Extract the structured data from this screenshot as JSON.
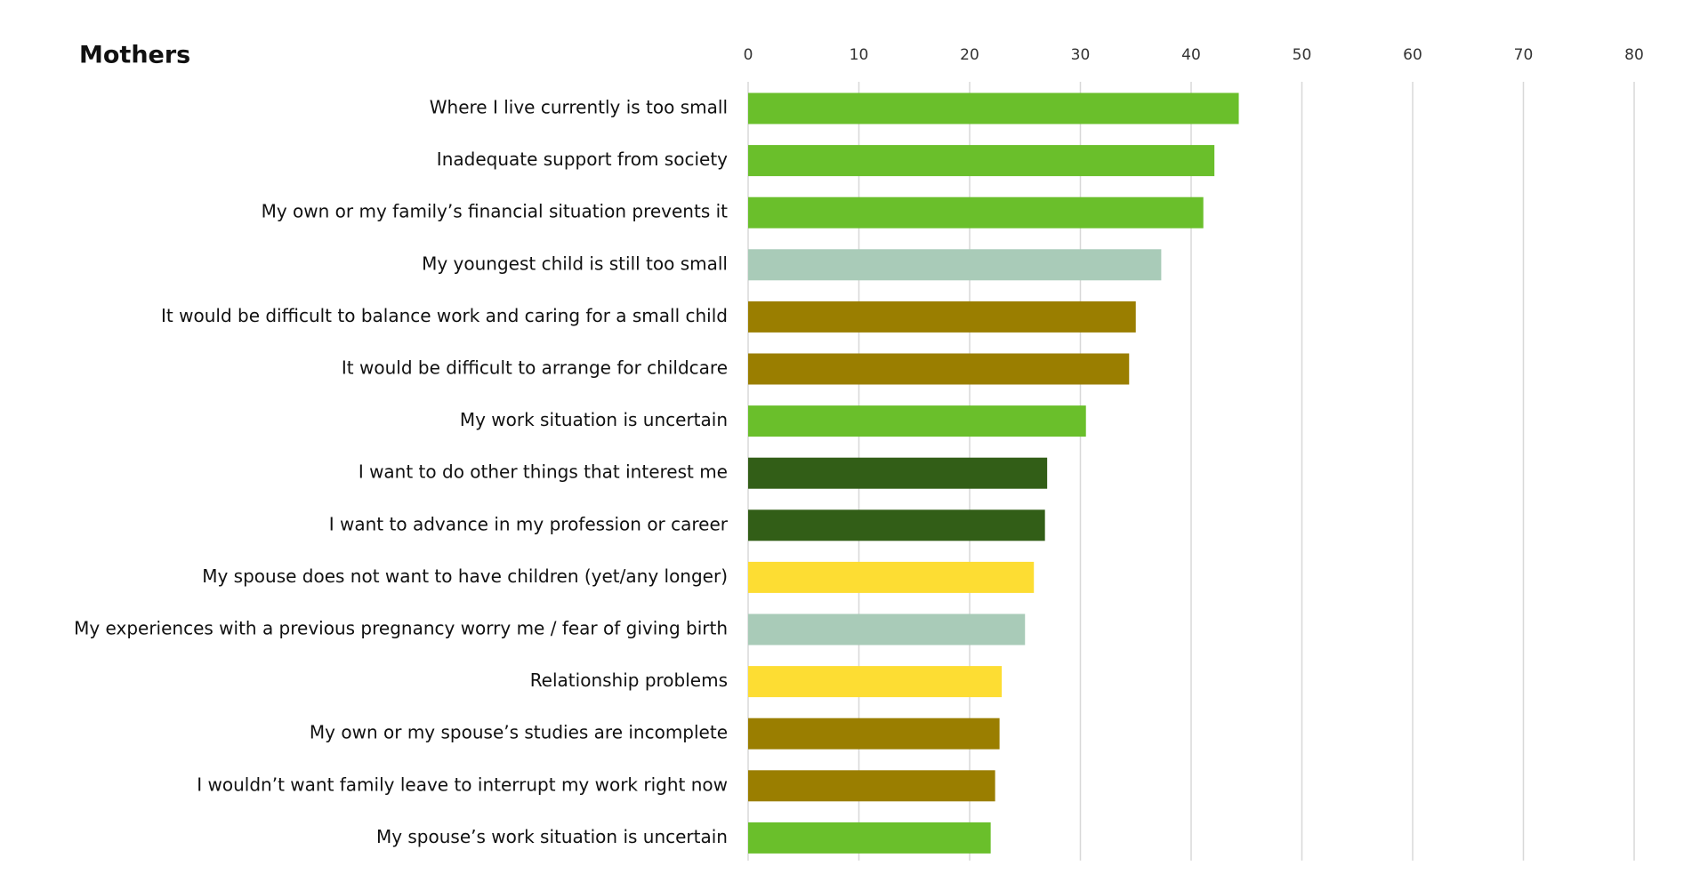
{
  "chart_data": {
    "type": "barh",
    "title": "Mothers",
    "categories": [
      "Where I live currently is too small",
      "Inadequate support from society",
      "My own or my family’s financial situation prevents it",
      "My youngest child is still too small",
      "It would be difficult to balance work and caring for a small child",
      "It would be difficult to arrange for childcare",
      "My work situation is uncertain",
      "I want to do other things that interest me",
      "I want to advance in my profession or career",
      "My spouse does not want to have children (yet/any longer)",
      "My experiences with a previous pregnancy worry me / fear of giving birth",
      "Relationship problems",
      "My own or my spouse’s studies are incomplete",
      "I wouldn’t want family leave to interrupt my work right now",
      "My spouse’s work situation is uncertain"
    ],
    "values": [
      44.3,
      42.1,
      41.1,
      37.3,
      35.0,
      34.4,
      30.5,
      27.0,
      26.8,
      25.8,
      25.0,
      22.9,
      22.7,
      22.3,
      21.9
    ],
    "colors": [
      "#6abf2b",
      "#6abf2b",
      "#6abf2b",
      "#a9cbb8",
      "#9a7e00",
      "#9a7e00",
      "#6abf2b",
      "#325e17",
      "#325e17",
      "#fddd33",
      "#a9cbb8",
      "#fddd33",
      "#9a7e00",
      "#9a7e00",
      "#6abf2b"
    ],
    "xlim": [
      0,
      80
    ],
    "xticks": [
      0,
      10,
      20,
      30,
      40,
      50,
      60,
      70,
      80
    ],
    "grid": true
  }
}
